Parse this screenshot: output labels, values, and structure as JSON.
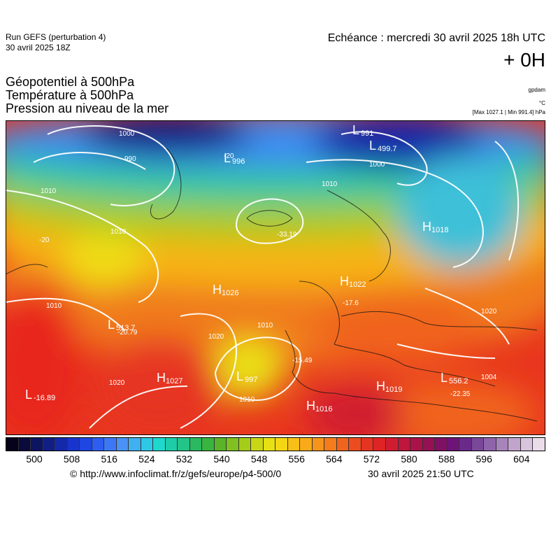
{
  "header": {
    "run_line1": "Run GEFS (perturbation 4)",
    "run_line2": "30 avril 2025 18Z",
    "echeance": "Echéance : mercredi 30 avril 2025 18h UTC",
    "lead": "+ 0H"
  },
  "fields": {
    "line1": "Géopotentiel à 500hPa",
    "line2": "Température à 500hPa",
    "line3": "Pression au niveau de la mer"
  },
  "units": {
    "gpdam": "gpdam",
    "celsius": "°C",
    "maxmin": "[Max 1027.1 | Min 991.4] hPa"
  },
  "map": {
    "centers": [
      {
        "type": "L",
        "value": "991"
      },
      {
        "type": "L",
        "value": "499.7"
      },
      {
        "type": "L",
        "value": "996"
      },
      {
        "type": "H",
        "value": "1018"
      },
      {
        "type": "H",
        "value": "1026"
      },
      {
        "type": "H",
        "value": "1027"
      },
      {
        "type": "H",
        "value": "1019"
      },
      {
        "type": "H",
        "value": "1016"
      },
      {
        "type": "H",
        "value": "1022"
      },
      {
        "type": "L",
        "value": "-16.89"
      },
      {
        "type": "L",
        "value": "513.7"
      },
      {
        "type": "L",
        "value": "997"
      },
      {
        "type": "L",
        "value": "556.2"
      }
    ],
    "isobar_labels": [
      "1000",
      "990",
      "1010",
      "1010",
      "1010",
      "1020",
      "1010",
      "1020",
      "1000",
      "1010",
      "1020",
      "1004",
      "1010"
    ],
    "temp_labels": [
      "-20",
      "-20",
      "-33.19",
      "-20.79",
      "-15.49",
      "-22.35",
      "-17.6"
    ]
  },
  "colorbar": {
    "colors": [
      "#05021a",
      "#0a0a3c",
      "#0d1460",
      "#101e86",
      "#1428aa",
      "#1834cc",
      "#1e46e0",
      "#2d5ef0",
      "#3c78f5",
      "#4a92f5",
      "#3fb0f0",
      "#2ec8e6",
      "#1ed8cc",
      "#1ecca8",
      "#22c488",
      "#2ab860",
      "#38b440",
      "#5ab42a",
      "#80c020",
      "#a6cc1a",
      "#c8d616",
      "#e6e014",
      "#f5d614",
      "#f8c016",
      "#f8aa18",
      "#f6941a",
      "#f47c1c",
      "#f0641e",
      "#ec4c20",
      "#e63422",
      "#de2424",
      "#d01c30",
      "#be163c",
      "#aa1248",
      "#961054",
      "#801064",
      "#6e1478",
      "#6a2a8a",
      "#7a4898",
      "#9064aa",
      "#a884bc",
      "#c0a4cc",
      "#d8c4dc",
      "#ecdcea"
    ],
    "ticks": [
      "500",
      "508",
      "516",
      "524",
      "532",
      "540",
      "548",
      "556",
      "564",
      "572",
      "580",
      "588",
      "596",
      "604"
    ]
  },
  "footer": {
    "url": "© http://www.infoclimat.fr/z/gefs/europe/p4-500/0",
    "timestamp": "30 avril 2025 21:50 UTC"
  }
}
